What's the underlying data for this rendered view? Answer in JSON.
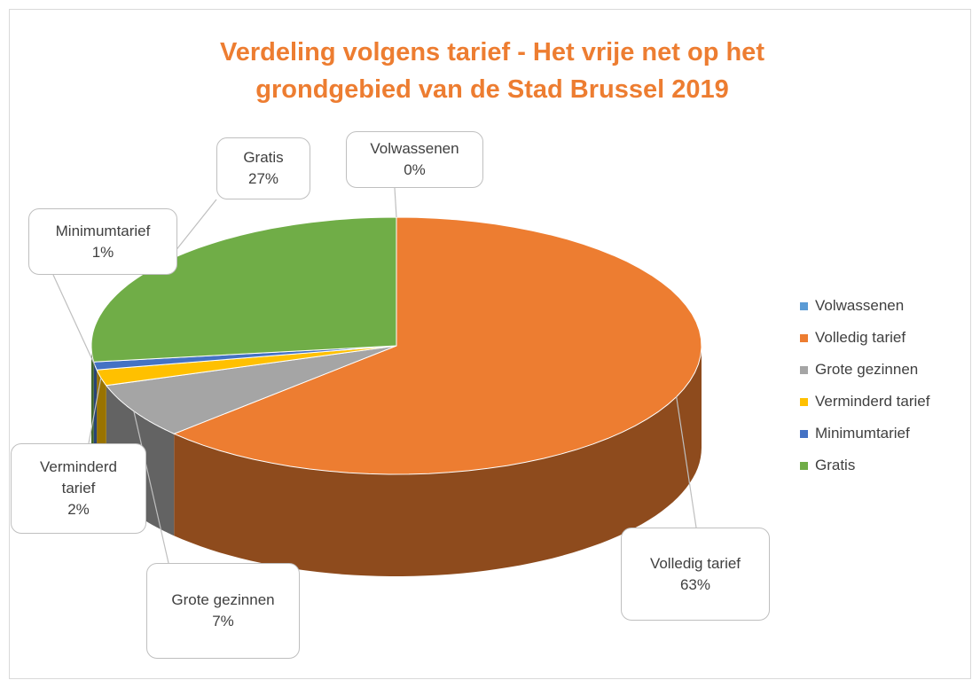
{
  "chart_data": {
    "type": "pie",
    "title": "Verdeling volgens tarief - Het vrije net op het grondgebied van de Stad Brussel 2019",
    "categories": [
      "Volwassenen",
      "Volledig tarief",
      "Grote gezinnen",
      "Verminderd tarief",
      "Minimumtarief",
      "Gratis"
    ],
    "values": [
      0,
      63,
      7,
      2,
      1,
      27
    ],
    "value_labels": [
      "0%",
      "63%",
      "7%",
      "2%",
      "1%",
      "27%"
    ],
    "colors": [
      "#5b9bd5",
      "#ed7d31",
      "#a5a5a5",
      "#ffc000",
      "#4472c4",
      "#70ad47"
    ],
    "legend": "right"
  }
}
